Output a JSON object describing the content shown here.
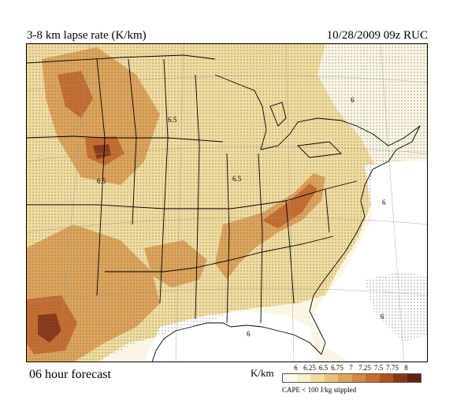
{
  "header": {
    "title": "3-8 km lapse rate (K/km)",
    "stamp": "10/28/2009  09z  RUC"
  },
  "footer": {
    "forecast": "06 hour forecast",
    "units": "K/km",
    "note": "CAPE < 100 J/kg stippled"
  },
  "legend": {
    "levels": [
      "6",
      "6.25",
      "6.5",
      "6.75",
      "7",
      "7.25",
      "7.5",
      "7.75",
      "8"
    ],
    "colors": [
      "#fdf9ec",
      "#f9efcc",
      "#f2dc9e",
      "#e8c077",
      "#dea459",
      "#d38942",
      "#c66d2f",
      "#b0521e",
      "#8a3716",
      "#612310"
    ]
  },
  "map": {
    "colors": {
      "background": "#fbf6e3",
      "lapse_low": "#f2dc9e",
      "lapse_mid": "#dea459",
      "lapse_high": "#c66d2f",
      "lapse_max": "#8a3716",
      "stipple": "#666666",
      "ocean": "#ffffff",
      "borders": "#000000"
    },
    "contour_labels": [
      "6",
      "6",
      "6",
      "6",
      "6.5",
      "6.5",
      "6.5"
    ]
  }
}
